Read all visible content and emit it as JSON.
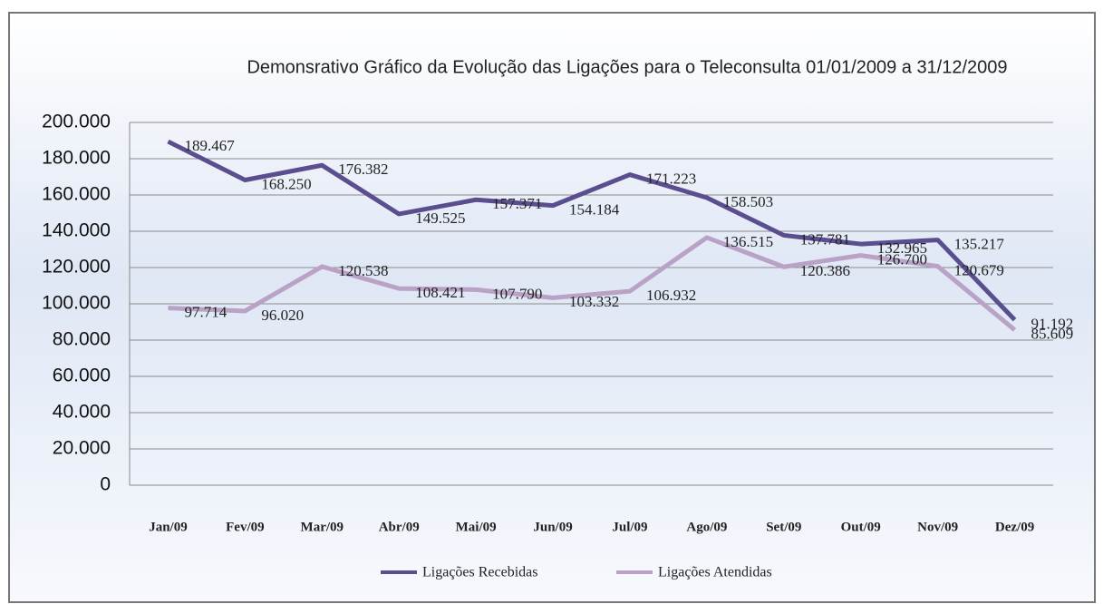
{
  "chart_data": {
    "type": "line",
    "title": "Demonsrativo Gráfico da Evolução das Ligações para o Teleconsulta 01/01/2009 a 31/12/2009",
    "categories": [
      "Jan/09",
      "Fev/09",
      "Mar/09",
      "Abr/09",
      "Mai/09",
      "Jun/09",
      "Jul/09",
      "Ago/09",
      "Set/09",
      "Out/09",
      "Nov/09",
      "Dez/09"
    ],
    "series": [
      {
        "name": "Ligações Recebidas",
        "color": "#5a4e8e",
        "values": [
          189467,
          168250,
          176382,
          149525,
          157371,
          154184,
          171223,
          158503,
          137781,
          132965,
          135217,
          91192
        ],
        "value_labels": [
          "189.467",
          "168.250",
          "176.382",
          "149.525",
          "157.371",
          "154.184",
          "171.223",
          "158.503",
          "137.781",
          "132.965",
          "135.217",
          "91.192"
        ]
      },
      {
        "name": "Ligações Atendidas",
        "color": "#b9a2c6",
        "values": [
          97714,
          96020,
          120538,
          108421,
          107790,
          103332,
          106932,
          136515,
          120386,
          126700,
          120679,
          85609
        ],
        "value_labels": [
          "97.714",
          "96.020",
          "120.538",
          "108.421",
          "107.790",
          "103.332",
          "106.932",
          "136.515",
          "120.386",
          "126.700",
          "120.679",
          "85.609"
        ]
      }
    ],
    "ylim": [
      0,
      200000
    ],
    "yticks": [
      0,
      {
        "value": 20000,
        "label": "20.000"
      },
      {
        "value": 40000,
        "label": "40.000"
      },
      {
        "value": 60000,
        "label": "60.000"
      },
      {
        "value": 80000,
        "label": "80.000"
      },
      {
        "value": 100000,
        "label": "100.000"
      },
      {
        "value": 120000,
        "label": "120.000"
      },
      {
        "value": 140000,
        "label": "140.000"
      },
      {
        "value": 160000,
        "label": "160.000"
      },
      {
        "value": 180000,
        "label": "180.000"
      },
      {
        "value": 200000,
        "label": "200.000"
      }
    ],
    "grid": true,
    "legend": "bottom"
  }
}
